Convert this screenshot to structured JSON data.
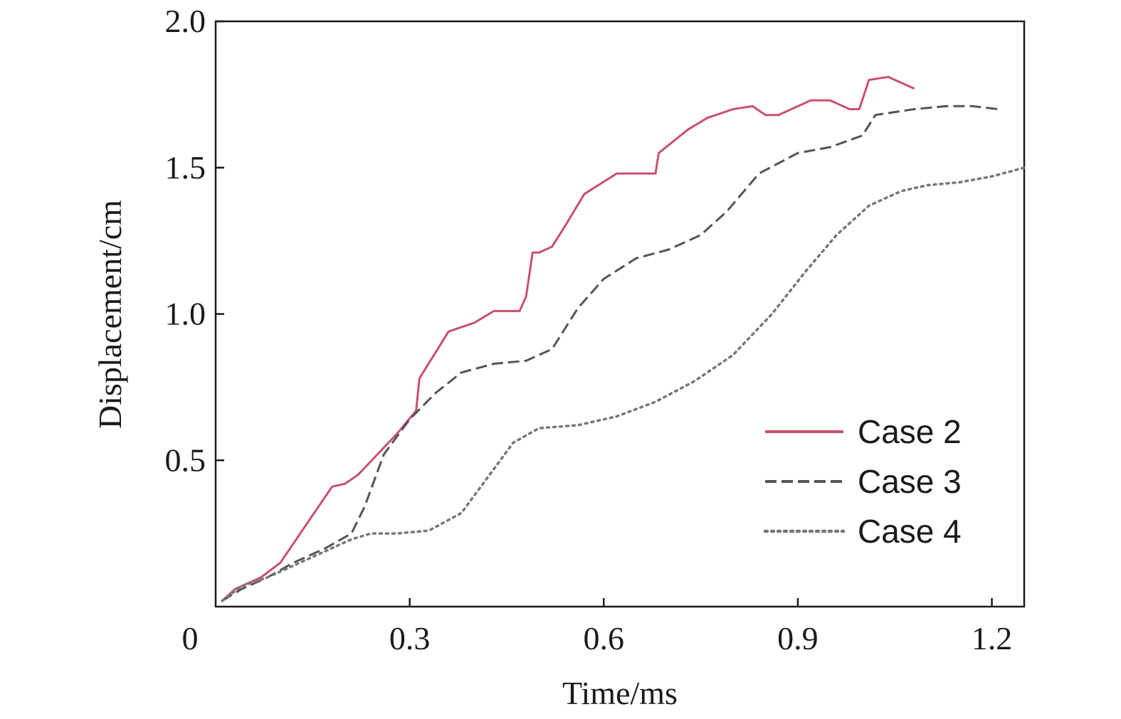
{
  "chart_data": {
    "type": "line",
    "xlabel": "Time/ms",
    "ylabel": "Displacement/cm",
    "xlim": [
      0,
      1.25
    ],
    "ylim": [
      0,
      2.0
    ],
    "xticks": [
      0,
      0.3,
      0.6,
      0.9,
      1.2
    ],
    "xtick_labels": [
      "0",
      "0.3",
      "0.6",
      "0.9",
      "1.2"
    ],
    "yticks": [
      0.5,
      1.0,
      1.5,
      2.0
    ],
    "ytick_labels": [
      "0.5",
      "1.0",
      "1.5",
      "2.0"
    ],
    "grid": false,
    "legend_position": "lower-right",
    "series": [
      {
        "name": "Case 2",
        "style": "solid",
        "color": "#c9506e",
        "x": [
          0.01,
          0.03,
          0.07,
          0.1,
          0.14,
          0.18,
          0.2,
          0.22,
          0.25,
          0.28,
          0.31,
          0.315,
          0.36,
          0.4,
          0.43,
          0.47,
          0.48,
          0.49,
          0.5,
          0.52,
          0.54,
          0.57,
          0.62,
          0.68,
          0.685,
          0.73,
          0.76,
          0.8,
          0.83,
          0.85,
          0.87,
          0.92,
          0.95,
          0.98,
          0.995,
          1.01,
          1.04,
          1.08
        ],
        "y": [
          0.02,
          0.06,
          0.1,
          0.15,
          0.28,
          0.41,
          0.42,
          0.45,
          0.52,
          0.59,
          0.67,
          0.78,
          0.94,
          0.97,
          1.01,
          1.01,
          1.06,
          1.21,
          1.21,
          1.23,
          1.3,
          1.41,
          1.48,
          1.48,
          1.55,
          1.63,
          1.67,
          1.7,
          1.71,
          1.68,
          1.68,
          1.73,
          1.73,
          1.7,
          1.7,
          1.8,
          1.81,
          1.77
        ]
      },
      {
        "name": "Case 3",
        "style": "dashed",
        "color": "#555555",
        "x": [
          0.01,
          0.04,
          0.08,
          0.12,
          0.17,
          0.21,
          0.23,
          0.26,
          0.3,
          0.34,
          0.38,
          0.43,
          0.48,
          0.52,
          0.56,
          0.6,
          0.65,
          0.7,
          0.75,
          0.79,
          0.84,
          0.9,
          0.95,
          1.0,
          1.02,
          1.08,
          1.13,
          1.17,
          1.21
        ],
        "y": [
          0.02,
          0.06,
          0.1,
          0.15,
          0.2,
          0.25,
          0.34,
          0.52,
          0.64,
          0.73,
          0.8,
          0.83,
          0.84,
          0.88,
          1.02,
          1.12,
          1.19,
          1.22,
          1.27,
          1.35,
          1.48,
          1.55,
          1.57,
          1.61,
          1.68,
          1.7,
          1.71,
          1.71,
          1.7
        ]
      },
      {
        "name": "Case 4",
        "style": "dotted",
        "color": "#777777",
        "x": [
          0.01,
          0.04,
          0.08,
          0.12,
          0.17,
          0.21,
          0.24,
          0.28,
          0.33,
          0.38,
          0.43,
          0.46,
          0.5,
          0.56,
          0.62,
          0.68,
          0.74,
          0.8,
          0.86,
          0.91,
          0.96,
          1.01,
          1.06,
          1.1,
          1.15,
          1.2,
          1.25
        ],
        "y": [
          0.02,
          0.07,
          0.1,
          0.14,
          0.19,
          0.23,
          0.25,
          0.25,
          0.26,
          0.32,
          0.47,
          0.56,
          0.61,
          0.62,
          0.65,
          0.7,
          0.77,
          0.86,
          1.0,
          1.14,
          1.27,
          1.37,
          1.42,
          1.44,
          1.45,
          1.47,
          1.5
        ]
      }
    ]
  }
}
